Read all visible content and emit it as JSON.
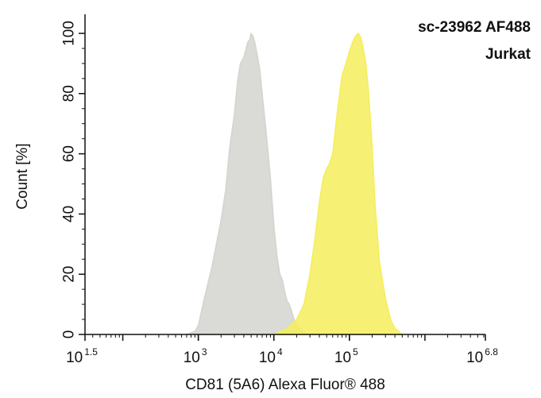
{
  "chart_data": {
    "type": "area",
    "xscale": "log",
    "xlim": [
      31.6,
      6310000
    ],
    "ylim": [
      0,
      100
    ],
    "xlabel": "CD81 (5A6) Alexa Fluor® 488",
    "ylabel": "Count [%]",
    "annotations": [
      "sc-23962 AF488",
      "Jurkat"
    ],
    "xticks": [
      {
        "base": "10",
        "exp": "1.5",
        "value": 31.6
      },
      {
        "base": "10",
        "exp": "3",
        "value": 1000
      },
      {
        "base": "10",
        "exp": "4",
        "value": 10000
      },
      {
        "base": "10",
        "exp": "5",
        "value": 100000
      },
      {
        "base": "10",
        "exp": "6.8",
        "value": 6310000
      }
    ],
    "yticks": [
      0,
      20,
      40,
      60,
      80,
      100
    ],
    "series": [
      {
        "color": "#d4d4cf",
        "x": [
          700,
          900,
          1000,
          1200,
          1500,
          2000,
          2300,
          2600,
          3000,
          3300,
          3600,
          4000,
          4300,
          4500,
          4800,
          5000,
          5300,
          5600,
          6000,
          6500,
          7000,
          8000,
          9000,
          10000,
          11000,
          12000,
          13000,
          14000,
          15000,
          16000,
          17000,
          18000,
          19000,
          20000,
          22000,
          25000,
          28000
        ],
        "y": [
          0,
          1,
          3,
          12,
          22,
          38,
          48,
          62,
          73,
          84,
          90,
          92,
          95,
          97,
          98,
          100,
          99,
          97,
          93,
          88,
          80,
          66,
          52,
          36,
          26,
          20,
          18,
          14,
          11,
          10,
          8,
          6,
          4,
          3,
          2,
          1,
          0
        ]
      },
      {
        "color": "#f4ee5c",
        "x": [
          10000,
          15000,
          20000,
          25000,
          30000,
          35000,
          40000,
          45000,
          50000,
          55000,
          60000,
          70000,
          80000,
          90000,
          100000,
          110000,
          120000,
          130000,
          140000,
          150000,
          165000,
          180000,
          200000,
          220000,
          250000,
          300000,
          350000,
          400000,
          450000,
          500000
        ],
        "y": [
          0,
          2,
          5,
          10,
          20,
          32,
          44,
          52,
          55,
          57,
          60,
          75,
          86,
          90,
          94,
          97,
          99,
          100,
          99,
          96,
          90,
          80,
          62,
          42,
          24,
          12,
          5,
          2,
          1,
          0
        ]
      }
    ]
  }
}
